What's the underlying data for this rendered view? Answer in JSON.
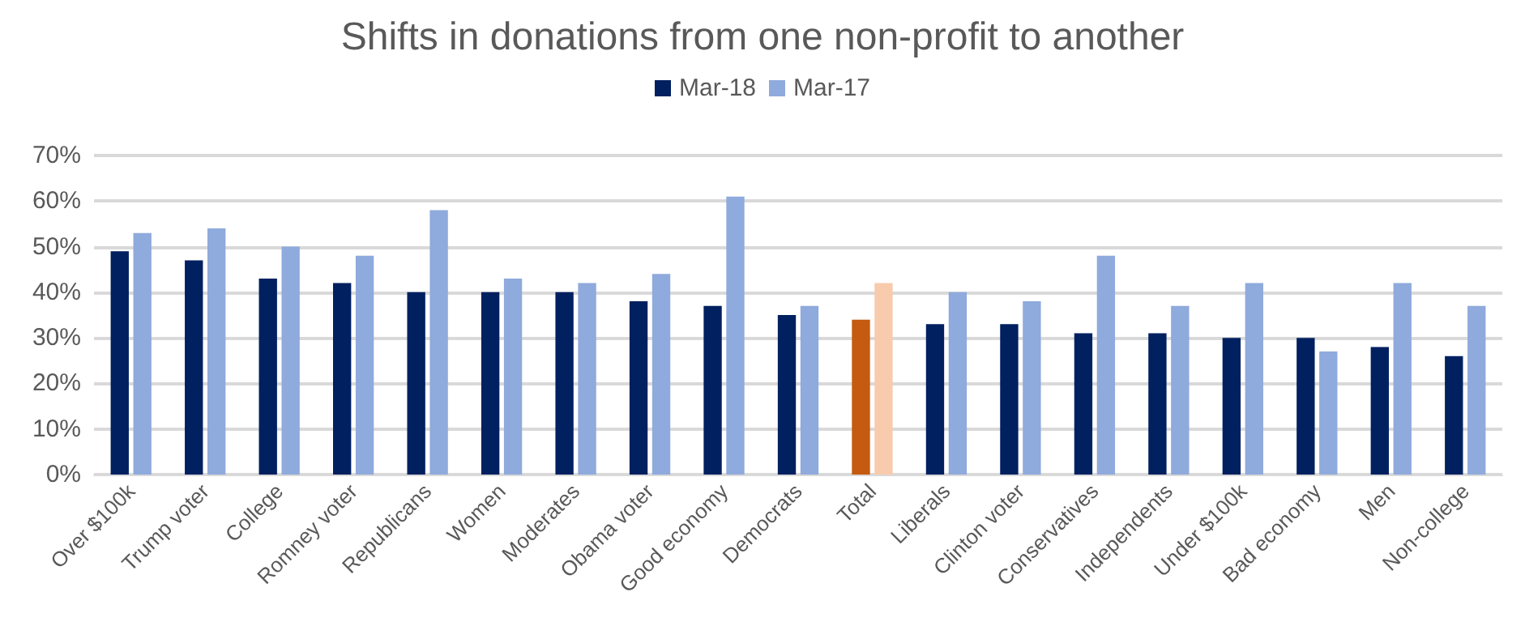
{
  "chart_data": {
    "type": "bar",
    "title": "Shifts in donations from one non-profit to another",
    "categories": [
      "Over $100k",
      "Trump voter",
      "College",
      "Romney voter",
      "Republicans",
      "Women",
      "Moderates",
      "Obama voter",
      "Good economy",
      "Democrats",
      "Total",
      "Liberals",
      "Clinton voter",
      "Conservatives",
      "Independents",
      "Under $100k",
      "Bad economy",
      "Men",
      "Non-college"
    ],
    "series": [
      {
        "name": "Mar-18",
        "color": "#002060",
        "colors": [
          "#002060",
          "#002060",
          "#002060",
          "#002060",
          "#002060",
          "#002060",
          "#002060",
          "#002060",
          "#002060",
          "#002060",
          "#c55a11",
          "#002060",
          "#002060",
          "#002060",
          "#002060",
          "#002060",
          "#002060",
          "#002060",
          "#002060"
        ],
        "values": [
          49,
          47,
          43,
          42,
          40,
          40,
          40,
          38,
          37,
          35,
          34,
          33,
          33,
          31,
          31,
          30,
          30,
          28,
          26
        ]
      },
      {
        "name": "Mar-17",
        "color": "#8faadc",
        "colors": [
          "#8faadc",
          "#8faadc",
          "#8faadc",
          "#8faadc",
          "#8faadc",
          "#8faadc",
          "#8faadc",
          "#8faadc",
          "#8faadc",
          "#8faadc",
          "#f8cbad",
          "#8faadc",
          "#8faadc",
          "#8faadc",
          "#8faadc",
          "#8faadc",
          "#8faadc",
          "#8faadc",
          "#8faadc"
        ],
        "values": [
          53,
          54,
          50,
          48,
          58,
          43,
          42,
          44,
          61,
          37,
          42,
          40,
          38,
          48,
          37,
          42,
          27,
          42,
          37
        ]
      }
    ],
    "ylim": [
      0,
      70
    ],
    "yticks": [
      {
        "value": 0,
        "label": "0%"
      },
      {
        "value": 10,
        "label": "10%"
      },
      {
        "value": 20,
        "label": "20%"
      },
      {
        "value": 30,
        "label": "30%"
      },
      {
        "value": 40,
        "label": "40%"
      },
      {
        "value": 50,
        "label": "50%"
      },
      {
        "value": 60,
        "label": "60%"
      },
      {
        "value": 70,
        "label": "70%"
      }
    ],
    "grid": "y",
    "legend": "top"
  }
}
